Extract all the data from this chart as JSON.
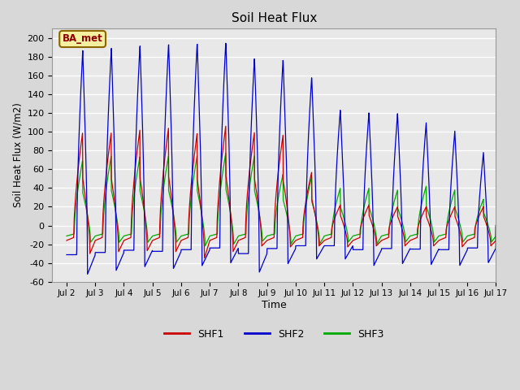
{
  "title": "Soil Heat Flux",
  "xlabel": "Time",
  "ylabel": "Soil Heat Flux (W/m2)",
  "ylim": [
    -60,
    210
  ],
  "yticks": [
    -60,
    -40,
    -20,
    0,
    20,
    40,
    60,
    80,
    100,
    120,
    140,
    160,
    180,
    200
  ],
  "xlim_start": 1.5,
  "xlim_end": 17.0,
  "xtick_positions": [
    2,
    3,
    4,
    5,
    6,
    7,
    8,
    9,
    10,
    11,
    12,
    13,
    14,
    15,
    16,
    17
  ],
  "xtick_labels": [
    "Jul 2",
    "Jul 3",
    "Jul 4",
    "Jul 5",
    "Jul 6",
    "Jul 7",
    "Jul 8",
    "Jul 9",
    "Jul 10",
    "Jul 11",
    "Jul 12",
    "Jul 13",
    "Jul 14",
    "Jul 15",
    "Jul 16",
    "Jul 17"
  ],
  "legend_labels": [
    "SHF1",
    "SHF2",
    "SHF3"
  ],
  "shf1_color": "#cc0000",
  "shf2_color": "#0000cc",
  "shf3_color": "#00aa00",
  "annotation_text": "BA_met",
  "plot_bg_color": "#e8e8e8",
  "fig_bg_color": "#d8d8d8",
  "grid_color": "#ffffff",
  "shf2_peaks": [
    187,
    190,
    193,
    195,
    196,
    197,
    180,
    178,
    159,
    124,
    121,
    120,
    110,
    101,
    78
  ],
  "shf2_troughs": [
    -52,
    -48,
    -44,
    -46,
    -43,
    -40,
    -50,
    -41,
    -36,
    -36,
    -43,
    -41,
    -42,
    -43,
    -40
  ],
  "shf1_peaks": [
    100,
    100,
    103,
    105,
    99,
    107,
    100,
    97,
    57,
    22,
    22,
    20,
    20,
    20,
    20
  ],
  "shf1_troughs": [
    -30,
    -28,
    -27,
    -28,
    -35,
    -28,
    -22,
    -23,
    -22,
    -23,
    -22,
    -22,
    -22,
    -23,
    -22
  ],
  "shf3_peaks": [
    70,
    75,
    74,
    75,
    75,
    78,
    75,
    55,
    52,
    40,
    40,
    38,
    42,
    38,
    28
  ],
  "shf3_troughs": [
    -18,
    -18,
    -18,
    -18,
    -22,
    -20,
    -17,
    -20,
    -20,
    -18,
    -20,
    -18,
    -18,
    -18,
    -18
  ],
  "shf3_night_base": -17,
  "figsize": [
    6.4,
    4.8
  ],
  "dpi": 100
}
